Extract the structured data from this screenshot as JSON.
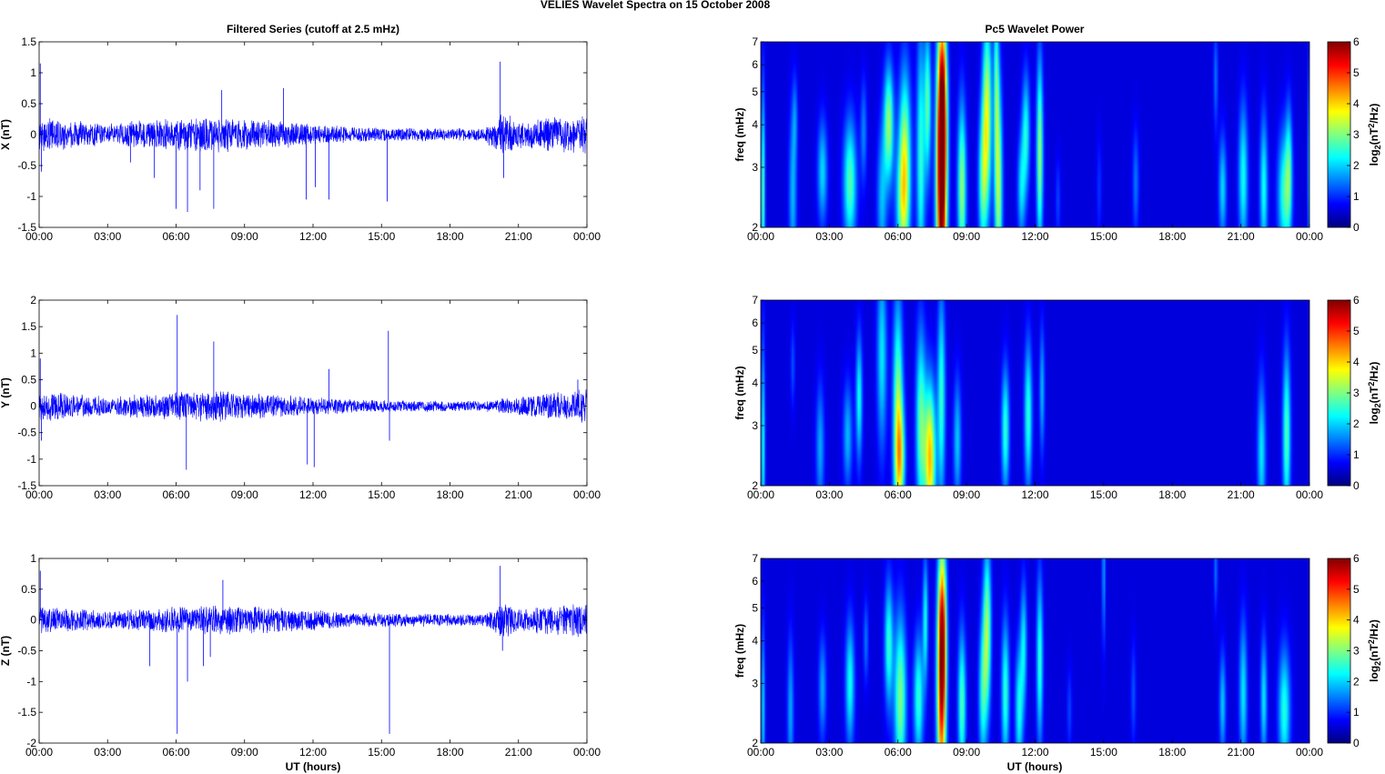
{
  "figure": {
    "title": "VELIES Wavelet Spectra on 15 October   2008",
    "left_title": "Filtered Series (cutoff at 2.5 mHz)",
    "right_title": "Pc5 Wavelet Power",
    "xlabel": "UT (hours)"
  },
  "chart_data": [
    {
      "type": "line",
      "component": "X",
      "ylabel": "X (nT)",
      "xlim": [
        "00:00",
        "24:00"
      ],
      "ylim": [
        -1.5,
        1.5
      ],
      "x_ticks": [
        "00:00",
        "03:00",
        "06:00",
        "09:00",
        "12:00",
        "15:00",
        "18:00",
        "21:00",
        "00:00"
      ],
      "y_ticks": [
        "-1.5",
        "-1",
        "-0.5",
        "0",
        "0.5",
        "1",
        "1.5"
      ],
      "color": "#0000ff",
      "background_amplitude": [
        [
          0,
          0.28
        ],
        [
          3,
          0.18
        ],
        [
          5,
          0.25
        ],
        [
          8,
          0.3
        ],
        [
          11,
          0.22
        ],
        [
          14,
          0.12
        ],
        [
          19.5,
          0.1
        ],
        [
          20.3,
          0.4
        ],
        [
          21,
          0.22
        ],
        [
          24,
          0.35
        ]
      ],
      "spikes": [
        [
          0.05,
          1.15
        ],
        [
          0.1,
          -0.6
        ],
        [
          4.0,
          -0.45
        ],
        [
          5.05,
          -0.7
        ],
        [
          6.0,
          -1.2
        ],
        [
          6.5,
          -1.25
        ],
        [
          7.05,
          -0.9
        ],
        [
          7.65,
          -1.2
        ],
        [
          8.0,
          0.72
        ],
        [
          10.7,
          0.75
        ],
        [
          11.7,
          -1.05
        ],
        [
          12.1,
          -0.85
        ],
        [
          12.7,
          -1.05
        ],
        [
          15.25,
          -1.08
        ],
        [
          20.2,
          1.18
        ],
        [
          20.35,
          -0.7
        ]
      ]
    },
    {
      "type": "line",
      "component": "Y",
      "ylabel": "Y (nT)",
      "xlim": [
        "00:00",
        "24:00"
      ],
      "ylim": [
        -1.5,
        2
      ],
      "x_ticks": [
        "00:00",
        "03:00",
        "06:00",
        "09:00",
        "12:00",
        "15:00",
        "18:00",
        "21:00",
        "00:00"
      ],
      "y_ticks": [
        "-1.5",
        "-1",
        "-0.5",
        "0",
        "0.5",
        "1",
        "1.5",
        "2"
      ],
      "color": "#0000ff",
      "background_amplitude": [
        [
          0,
          0.3
        ],
        [
          3,
          0.18
        ],
        [
          6,
          0.28
        ],
        [
          8,
          0.3
        ],
        [
          11,
          0.2
        ],
        [
          14,
          0.12
        ],
        [
          19.5,
          0.1
        ],
        [
          20.5,
          0.15
        ],
        [
          24,
          0.35
        ]
      ],
      "spikes": [
        [
          0.05,
          0.9
        ],
        [
          0.1,
          -0.65
        ],
        [
          6.05,
          1.72
        ],
        [
          6.45,
          -1.2
        ],
        [
          7.65,
          1.22
        ],
        [
          11.75,
          -1.1
        ],
        [
          12.05,
          -1.15
        ],
        [
          12.7,
          0.7
        ],
        [
          15.3,
          1.42
        ],
        [
          15.35,
          -0.65
        ],
        [
          23.6,
          0.5
        ]
      ]
    },
    {
      "type": "line",
      "component": "Z",
      "ylabel": "Z (nT)",
      "xlim": [
        "00:00",
        "24:00"
      ],
      "ylim": [
        -2,
        1
      ],
      "x_ticks": [
        "00:00",
        "03:00",
        "06:00",
        "09:00",
        "12:00",
        "15:00",
        "18:00",
        "21:00",
        "00:00"
      ],
      "y_ticks": [
        "-2",
        "-1.5",
        "-1",
        "-0.5",
        "0",
        "0.5",
        "1"
      ],
      "color": "#0000ff",
      "background_amplitude": [
        [
          0,
          0.22
        ],
        [
          3,
          0.15
        ],
        [
          6,
          0.22
        ],
        [
          8,
          0.25
        ],
        [
          11,
          0.2
        ],
        [
          14,
          0.12
        ],
        [
          19.5,
          0.1
        ],
        [
          20.3,
          0.3
        ],
        [
          21,
          0.2
        ],
        [
          24,
          0.28
        ]
      ],
      "spikes": [
        [
          0.05,
          0.8
        ],
        [
          4.85,
          -0.75
        ],
        [
          6.05,
          -1.85
        ],
        [
          6.5,
          -1.0
        ],
        [
          7.2,
          -0.75
        ],
        [
          7.5,
          -0.6
        ],
        [
          8.05,
          0.65
        ],
        [
          15.35,
          -1.85
        ],
        [
          20.2,
          0.88
        ],
        [
          20.3,
          -0.5
        ]
      ]
    },
    {
      "type": "heatmap",
      "component": "X",
      "ylabel": "freq (mHz)",
      "colorbar_label": "log2(nT2/Hz)",
      "colorbar_ticks": [
        "0",
        "1",
        "2",
        "3",
        "4",
        "5",
        "6"
      ],
      "clim": [
        0,
        6
      ],
      "colormap": "jet",
      "y_scale": "log",
      "xlim": [
        "00:00",
        "24:00"
      ],
      "ylim": [
        2,
        7
      ],
      "x_ticks": [
        "00:00",
        "03:00",
        "06:00",
        "09:00",
        "12:00",
        "15:00",
        "18:00",
        "21:00",
        "00:00"
      ],
      "y_ticks": [
        "2",
        "3",
        "4",
        "5",
        "6",
        "7"
      ],
      "background_power": 0.55,
      "blobs": [
        [
          0.1,
          2.5,
          0.06,
          0.5,
          2.2
        ],
        [
          1.4,
          2.5,
          0.12,
          0.4,
          1.3
        ],
        [
          1.5,
          4.2,
          0.08,
          0.2,
          0.8
        ],
        [
          2.7,
          2.9,
          0.15,
          0.25,
          1.5
        ],
        [
          3.9,
          2.7,
          0.2,
          0.3,
          2.2
        ],
        [
          4.5,
          3.8,
          0.1,
          0.25,
          1.0
        ],
        [
          5.3,
          2.4,
          0.15,
          0.35,
          1.3
        ],
        [
          5.6,
          4.0,
          0.15,
          0.28,
          2.6
        ],
        [
          6.2,
          2.3,
          0.2,
          0.3,
          2.0
        ],
        [
          6.3,
          3.4,
          0.18,
          0.4,
          2.4
        ],
        [
          7.0,
          3.2,
          0.13,
          0.6,
          2.0
        ],
        [
          7.3,
          4.6,
          0.1,
          0.35,
          2.2
        ],
        [
          7.9,
          2.6,
          0.16,
          0.7,
          5.2
        ],
        [
          7.95,
          4.3,
          0.13,
          0.45,
          3.6
        ],
        [
          8.8,
          2.6,
          0.13,
          0.4,
          2.6
        ],
        [
          9.7,
          2.7,
          0.13,
          0.35,
          2.0
        ],
        [
          9.9,
          4.3,
          0.14,
          0.45,
          3.0
        ],
        [
          10.4,
          2.6,
          0.12,
          0.5,
          2.6
        ],
        [
          10.3,
          5.3,
          0.08,
          0.45,
          1.8
        ],
        [
          11.4,
          2.6,
          0.12,
          0.25,
          1.5
        ],
        [
          11.6,
          3.8,
          0.12,
          0.28,
          1.8
        ],
        [
          12.2,
          3.3,
          0.1,
          0.45,
          2.6
        ],
        [
          13.0,
          2.4,
          0.08,
          0.2,
          0.6
        ],
        [
          14.8,
          2.6,
          0.08,
          0.25,
          0.5
        ],
        [
          16.4,
          2.7,
          0.1,
          0.25,
          0.9
        ],
        [
          19.9,
          5.5,
          0.07,
          0.25,
          0.9
        ],
        [
          20.2,
          2.6,
          0.12,
          0.25,
          1.5
        ],
        [
          21.1,
          2.8,
          0.14,
          0.35,
          1.8
        ],
        [
          22.0,
          2.6,
          0.12,
          0.35,
          1.8
        ],
        [
          22.9,
          2.5,
          0.2,
          0.3,
          2.0
        ],
        [
          23.1,
          3.0,
          0.1,
          0.3,
          1.5
        ],
        [
          24.0,
          3.0,
          0.05,
          0.5,
          1.5
        ]
      ]
    },
    {
      "type": "heatmap",
      "component": "Y",
      "ylabel": "freq (mHz)",
      "colorbar_label": "log2(nT2/Hz)",
      "colorbar_ticks": [
        "0",
        "1",
        "2",
        "3",
        "4",
        "5",
        "6"
      ],
      "clim": [
        0,
        6
      ],
      "colormap": "jet",
      "y_scale": "log",
      "xlim": [
        "00:00",
        "24:00"
      ],
      "ylim": [
        2,
        7
      ],
      "x_ticks": [
        "00:00",
        "03:00",
        "06:00",
        "09:00",
        "12:00",
        "15:00",
        "18:00",
        "21:00",
        "00:00"
      ],
      "y_ticks": [
        "2",
        "3",
        "4",
        "5",
        "6",
        "7"
      ],
      "background_power": 0.55,
      "blobs": [
        [
          0.1,
          2.6,
          0.06,
          0.5,
          1.8
        ],
        [
          1.4,
          4.5,
          0.07,
          0.2,
          0.7
        ],
        [
          2.6,
          2.6,
          0.13,
          0.3,
          1.2
        ],
        [
          3.8,
          2.8,
          0.14,
          0.25,
          1.3
        ],
        [
          4.3,
          3.6,
          0.1,
          0.3,
          1.8
        ],
        [
          5.3,
          4.8,
          0.15,
          0.45,
          1.6
        ],
        [
          6.0,
          3.2,
          0.15,
          0.55,
          2.6
        ],
        [
          6.1,
          2.4,
          0.15,
          0.25,
          2.0
        ],
        [
          7.0,
          3.0,
          0.15,
          0.45,
          2.3
        ],
        [
          7.4,
          2.4,
          0.17,
          0.35,
          3.6
        ],
        [
          7.9,
          3.6,
          0.12,
          0.5,
          2.0
        ],
        [
          8.6,
          2.7,
          0.12,
          0.3,
          1.4
        ],
        [
          10.7,
          2.9,
          0.12,
          0.3,
          2.0
        ],
        [
          11.7,
          3.2,
          0.12,
          0.35,
          2.0
        ],
        [
          12.3,
          3.8,
          0.08,
          0.3,
          1.3
        ],
        [
          21.9,
          2.5,
          0.13,
          0.35,
          1.6
        ],
        [
          23.0,
          2.8,
          0.12,
          0.4,
          2.2
        ]
      ]
    },
    {
      "type": "heatmap",
      "component": "Z",
      "ylabel": "freq (mHz)",
      "colorbar_label": "log2(nT2/Hz)",
      "colorbar_ticks": [
        "0",
        "1",
        "2",
        "3",
        "4",
        "5",
        "6"
      ],
      "clim": [
        0,
        6
      ],
      "colormap": "jet",
      "y_scale": "log",
      "xlim": [
        "00:00",
        "24:00"
      ],
      "ylim": [
        2,
        7
      ],
      "x_ticks": [
        "00:00",
        "03:00",
        "06:00",
        "09:00",
        "12:00",
        "15:00",
        "18:00",
        "21:00",
        "00:00"
      ],
      "y_ticks": [
        "2",
        "3",
        "4",
        "5",
        "6",
        "7"
      ],
      "background_power": 0.55,
      "blobs": [
        [
          0.1,
          2.5,
          0.06,
          0.4,
          1.5
        ],
        [
          1.3,
          2.5,
          0.1,
          0.35,
          1.2
        ],
        [
          2.7,
          2.9,
          0.12,
          0.25,
          1.2
        ],
        [
          3.9,
          3.0,
          0.14,
          0.3,
          1.8
        ],
        [
          4.6,
          4.0,
          0.08,
          0.2,
          0.9
        ],
        [
          5.6,
          3.9,
          0.13,
          0.3,
          2.0
        ],
        [
          6.1,
          2.7,
          0.18,
          0.4,
          2.5
        ],
        [
          6.9,
          2.7,
          0.15,
          0.3,
          2.0
        ],
        [
          7.2,
          4.6,
          0.08,
          0.3,
          1.8
        ],
        [
          7.9,
          2.8,
          0.14,
          0.6,
          4.0
        ],
        [
          7.95,
          4.2,
          0.12,
          0.4,
          3.0
        ],
        [
          8.8,
          2.6,
          0.12,
          0.35,
          2.2
        ],
        [
          9.7,
          2.8,
          0.12,
          0.35,
          1.8
        ],
        [
          9.9,
          4.3,
          0.12,
          0.4,
          2.6
        ],
        [
          10.7,
          2.8,
          0.12,
          0.35,
          2.0
        ],
        [
          11.3,
          2.5,
          0.12,
          0.3,
          1.8
        ],
        [
          11.5,
          3.9,
          0.1,
          0.3,
          1.6
        ],
        [
          12.2,
          3.5,
          0.1,
          0.4,
          2.0
        ],
        [
          13.5,
          2.5,
          0.08,
          0.2,
          0.6
        ],
        [
          15.0,
          6.4,
          0.05,
          0.35,
          1.2
        ],
        [
          16.3,
          2.8,
          0.08,
          0.25,
          0.7
        ],
        [
          19.9,
          6.5,
          0.06,
          0.2,
          0.9
        ],
        [
          20.2,
          2.6,
          0.1,
          0.25,
          1.4
        ],
        [
          21.1,
          2.8,
          0.12,
          0.35,
          1.6
        ],
        [
          22.0,
          2.7,
          0.1,
          0.3,
          1.6
        ],
        [
          22.9,
          2.5,
          0.18,
          0.3,
          1.9
        ]
      ]
    }
  ]
}
